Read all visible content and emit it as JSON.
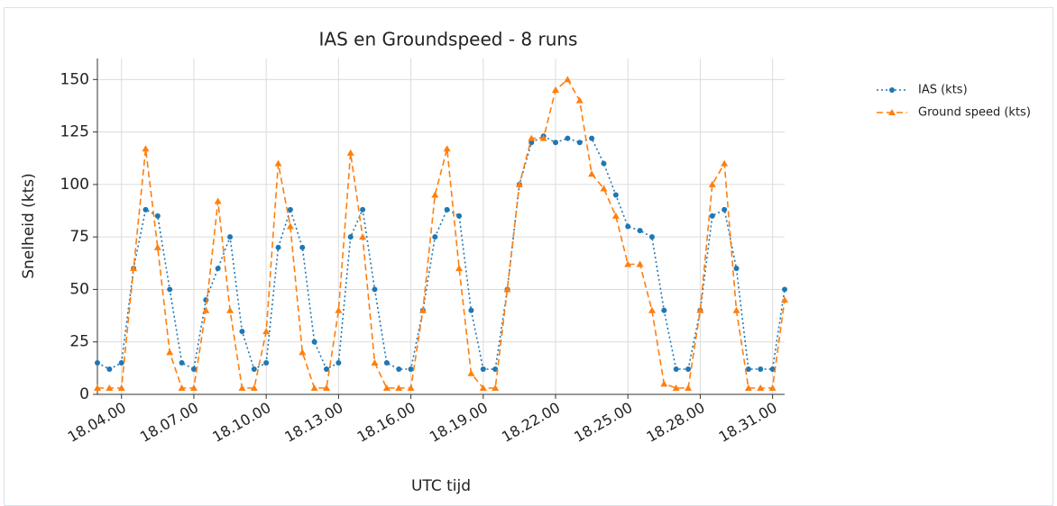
{
  "chart_data": {
    "type": "line",
    "title": "IAS en Groundspeed - 8 runs",
    "xlabel": "UTC tijd",
    "ylabel": "Snelheid (kts)",
    "x": [
      "18.03.00",
      "18.03.30",
      "18.04.00",
      "18.04.30",
      "18.05.00",
      "18.05.30",
      "18.06.00",
      "18.06.30",
      "18.07.00",
      "18.07.30",
      "18.08.00",
      "18.08.30",
      "18.09.00",
      "18.09.30",
      "18.10.00",
      "18.10.30",
      "18.11.00",
      "18.11.30",
      "18.12.00",
      "18.12.30",
      "18.13.00",
      "18.13.30",
      "18.14.00",
      "18.14.30",
      "18.15.00",
      "18.15.30",
      "18.16.00",
      "18.16.30",
      "18.17.00",
      "18.17.30",
      "18.18.00",
      "18.18.30",
      "18.19.00",
      "18.19.30",
      "18.20.00",
      "18.20.30",
      "18.21.00",
      "18.21.30",
      "18.22.00",
      "18.22.30",
      "18.23.00",
      "18.23.30",
      "18.24.00",
      "18.24.30",
      "18.25.00",
      "18.25.30",
      "18.26.00",
      "18.26.30",
      "18.27.00",
      "18.27.30",
      "18.28.00",
      "18.28.30",
      "18.29.00",
      "18.29.30",
      "18.30.00",
      "18.30.30",
      "18.31.00",
      "18.31.30"
    ],
    "series": [
      {
        "name": "IAS (kts)",
        "color": "#1f77b4",
        "values": [
          15,
          12,
          15,
          60,
          88,
          85,
          50,
          15,
          12,
          45,
          60,
          75,
          30,
          12,
          15,
          70,
          88,
          70,
          25,
          12,
          15,
          75,
          88,
          50,
          15,
          12,
          12,
          40,
          75,
          88,
          85,
          40,
          12,
          12,
          50,
          100,
          120,
          123,
          120,
          122,
          120,
          122,
          110,
          95,
          80,
          78,
          75,
          40,
          12,
          12,
          40,
          85,
          88,
          60,
          12,
          12,
          12,
          50
        ]
      },
      {
        "name": "Ground speed (kts)",
        "color": "#ff7f0e",
        "values": [
          3,
          3,
          3,
          60,
          117,
          70,
          20,
          3,
          3,
          40,
          92,
          40,
          3,
          3,
          30,
          110,
          80,
          20,
          3,
          3,
          40,
          115,
          75,
          15,
          3,
          3,
          3,
          40,
          95,
          117,
          60,
          10,
          3,
          3,
          50,
          100,
          122,
          122,
          145,
          150,
          140,
          105,
          98,
          85,
          62,
          62,
          40,
          5,
          3,
          3,
          40,
          100,
          110,
          40,
          3,
          3,
          3,
          45
        ]
      }
    ],
    "xlim": [
      "18.03.00",
      "18.31.30"
    ],
    "xticks": [
      "18.04.00",
      "18.07.00",
      "18.10.00",
      "18.13.00",
      "18.16.00",
      "18.19.00",
      "18.22.00",
      "18.25.00",
      "18.28.00",
      "18.31.00"
    ],
    "ylim": [
      0,
      160
    ],
    "yticks": [
      0,
      25,
      50,
      75,
      100,
      125,
      150
    ],
    "grid": true
  }
}
